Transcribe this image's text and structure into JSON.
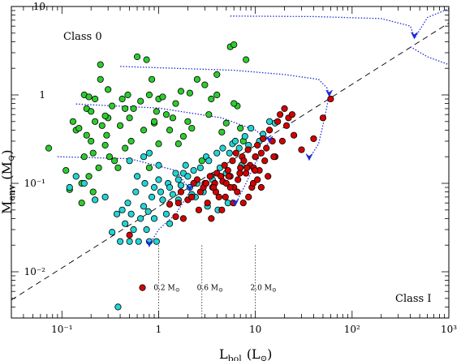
{
  "chart_data": {
    "type": "scatter",
    "xaxis": {
      "scale": "log",
      "range": [
        0.03,
        1000
      ],
      "label": "L",
      "label_sub": "bol",
      "label_unit": "(L",
      "label_unit_tail": ")",
      "tick_labels": [
        "10⁻¹",
        "1",
        "10",
        "10²",
        "10³"
      ],
      "tick_values": [
        0.1,
        1,
        10,
        100,
        1000
      ]
    },
    "yaxis": {
      "scale": "log",
      "range": [
        0.003,
        10
      ],
      "label": "M",
      "label_sub": "env",
      "label_unit": "(M",
      "label_unit_tail": ")",
      "tick_labels": [
        "10⁻²",
        "10⁻¹",
        "1",
        "10"
      ],
      "tick_values": [
        0.01,
        0.1,
        1,
        10
      ]
    },
    "annotations": {
      "class0": "Class 0",
      "class1": "Class I"
    },
    "mass_tracks": [
      {
        "label": "0.2 M",
        "x": 1.0
      },
      {
        "label": "0.6 M",
        "x": 2.8
      },
      {
        "label": "2.0 M",
        "x": 10.0
      }
    ],
    "boundary_line": {
      "x": [
        0.03,
        1000
      ],
      "y": [
        0.0048,
        6.5
      ]
    },
    "tracks": [
      {
        "x": [
          0.09,
          0.5,
          1.5,
          2.1
        ],
        "y": [
          0.2,
          0.19,
          0.14,
          0.085
        ]
      },
      {
        "x": [
          0.14,
          1.0,
          4.5,
          10.0,
          14.0
        ],
        "y": [
          0.79,
          0.71,
          0.55,
          0.4,
          0.3
        ]
      },
      {
        "x": [
          0.4,
          1.5,
          6.0,
          20.0,
          45.0,
          55.0,
          58.0
        ],
        "y": [
          2.1,
          2.0,
          1.9,
          1.7,
          1.5,
          1.2,
          1.0
        ]
      },
      {
        "x": [
          5.5,
          40.0,
          200.0,
          400.0,
          440.0
        ],
        "y": [
          7.8,
          7.7,
          7.3,
          6.0,
          4.5
        ]
      },
      {
        "x": [
          450.0,
          600.0,
          900.0,
          1000.0
        ],
        "y": [
          4.5,
          7.5,
          9.0,
          9.5
        ]
      },
      {
        "x": [
          400.0,
          600.0,
          900.0,
          1000.0
        ],
        "y": [
          3.5,
          2.7,
          2.3,
          2.2
        ]
      },
      {
        "x": [
          2.1,
          1.5,
          1.0,
          0.8
        ],
        "y": [
          0.08,
          0.045,
          0.03,
          0.02
        ]
      },
      {
        "x": [
          14.0,
          10.0,
          8.0,
          6.2
        ],
        "y": [
          0.3,
          0.17,
          0.1,
          0.058
        ]
      },
      {
        "x": [
          58.0,
          52.0,
          45.0,
          36.0
        ],
        "y": [
          1.0,
          0.55,
          0.28,
          0.19
        ]
      }
    ],
    "arrows": [
      {
        "x": 2.1,
        "y": 0.085
      },
      {
        "x": 0.8,
        "y": 0.02
      },
      {
        "x": 14.0,
        "y": 0.3
      },
      {
        "x": 6.2,
        "y": 0.058
      },
      {
        "x": 58.0,
        "y": 1.0
      },
      {
        "x": 36.0,
        "y": 0.19
      },
      {
        "x": 440.0,
        "y": 4.5
      }
    ],
    "series": [
      {
        "color": "#2dcc2d",
        "x": [
          0.073,
          0.11,
          0.12,
          0.13,
          0.14,
          0.15,
          0.16,
          0.16,
          0.17,
          0.17,
          0.18,
          0.18,
          0.19,
          0.19,
          0.2,
          0.2,
          0.21,
          0.21,
          0.22,
          0.22,
          0.24,
          0.25,
          0.26,
          0.28,
          0.29,
          0.3,
          0.31,
          0.33,
          0.35,
          0.38,
          0.4,
          0.42,
          0.45,
          0.48,
          0.5,
          0.52,
          0.55,
          0.6,
          0.65,
          0.7,
          0.75,
          0.8,
          0.85,
          0.9,
          0.95,
          1.0,
          1.1,
          1.2,
          1.3,
          1.4,
          1.5,
          1.6,
          1.7,
          1.8,
          2.0,
          2.2,
          2.5,
          2.8,
          3.0,
          3.3,
          3.5,
          4.0,
          4.5,
          5.0,
          5.5,
          6.0,
          6.5,
          7.0,
          7.5,
          8.0,
          0.8,
          1.0,
          0.25,
          0.3,
          0.45,
          0.9,
          2.1,
          4.0,
          6.0,
          0.28
        ],
        "y": [
          0.25,
          0.14,
          0.085,
          0.5,
          0.4,
          0.42,
          0.06,
          0.1,
          1.0,
          0.2,
          0.7,
          0.35,
          0.12,
          0.95,
          0.3,
          0.65,
          0.08,
          0.22,
          0.5,
          0.9,
          0.15,
          1.5,
          0.45,
          0.27,
          0.35,
          0.55,
          0.2,
          0.75,
          0.18,
          0.15,
          0.45,
          0.9,
          0.25,
          1.0,
          0.55,
          0.3,
          0.7,
          2.7,
          0.85,
          0.4,
          2.5,
          1.0,
          1.5,
          0.48,
          0.65,
          0.9,
          0.95,
          0.6,
          0.4,
          0.55,
          0.8,
          0.28,
          1.1,
          0.34,
          0.5,
          0.42,
          1.5,
          0.18,
          1.3,
          0.6,
          0.9,
          1.0,
          0.38,
          0.48,
          3.5,
          3.7,
          0.75,
          0.42,
          0.3,
          2.5,
          0.15,
          0.28,
          2.2,
          1.15,
          0.7,
          0.5,
          1.05,
          1.7,
          0.8,
          0.58
        ]
      },
      {
        "color": "#22d4d4",
        "x": [
          0.12,
          0.14,
          0.17,
          0.22,
          0.28,
          0.33,
          0.37,
          0.4,
          0.42,
          0.45,
          0.48,
          0.5,
          0.52,
          0.55,
          0.58,
          0.62,
          0.65,
          0.7,
          0.72,
          0.75,
          0.78,
          0.8,
          0.85,
          0.9,
          0.95,
          1.0,
          1.05,
          1.1,
          1.2,
          1.25,
          1.3,
          1.4,
          1.5,
          1.6,
          1.7,
          1.8,
          1.9,
          2.0,
          2.1,
          2.3,
          2.5,
          2.7,
          2.9,
          3.1,
          3.3,
          3.5,
          3.8,
          4.0,
          4.3,
          4.6,
          5.0,
          5.4,
          5.8,
          6.2,
          6.8,
          7.2,
          7.8,
          8.5,
          9.0,
          10.0,
          11.0,
          12.0,
          14.0,
          16.0,
          0.5,
          0.6,
          0.7,
          0.8,
          1.6,
          2.4,
          3.2,
          4.1,
          5.2,
          0.9,
          1.3,
          2.2,
          3.6,
          1.0,
          0.38
        ],
        "y": [
          0.09,
          0.12,
          0.1,
          0.065,
          0.07,
          0.028,
          0.045,
          0.022,
          0.05,
          0.035,
          0.06,
          0.022,
          0.045,
          0.03,
          0.08,
          0.022,
          0.04,
          0.055,
          0.1,
          0.03,
          0.048,
          0.022,
          0.07,
          0.09,
          0.022,
          0.11,
          0.08,
          0.065,
          0.045,
          0.1,
          0.09,
          0.075,
          0.13,
          0.11,
          0.095,
          0.13,
          0.16,
          0.12,
          0.09,
          0.14,
          0.1,
          0.15,
          0.08,
          0.2,
          0.18,
          0.12,
          0.1,
          0.22,
          0.15,
          0.25,
          0.13,
          0.22,
          0.28,
          0.3,
          0.25,
          0.16,
          0.34,
          0.27,
          0.42,
          0.2,
          0.3,
          0.36,
          0.5,
          0.48,
          0.18,
          0.12,
          0.2,
          0.22,
          0.065,
          0.07,
          0.055,
          0.05,
          0.06,
          0.04,
          0.035,
          0.075,
          0.11,
          0.16,
          0.004
        ]
      },
      {
        "color": "#d40000",
        "x": [
          0.5,
          1.3,
          1.5,
          1.6,
          1.8,
          2.0,
          2.2,
          2.5,
          2.7,
          3.0,
          3.2,
          3.4,
          3.6,
          3.8,
          4.0,
          4.2,
          4.4,
          4.6,
          4.8,
          5.0,
          5.2,
          5.5,
          5.8,
          6.0,
          6.3,
          6.6,
          7.0,
          7.3,
          7.6,
          8.0,
          8.4,
          8.8,
          9.2,
          9.6,
          10.0,
          10.5,
          11.0,
          11.5,
          12.0,
          12.5,
          13.0,
          14.0,
          15.0,
          16.0,
          17.0,
          18.0,
          19.0,
          20.0,
          21.0,
          22.0,
          24.0,
          25.0,
          2.6,
          3.5,
          4.5,
          5.5,
          6.5,
          7.5,
          8.5,
          9.5,
          10.5,
          11.5,
          13.5,
          15.5,
          1.7,
          2.3,
          2.9,
          3.9,
          4.9,
          5.9,
          6.9,
          50.0,
          60.0,
          30.0,
          40.0,
          3.1,
          3.7,
          5.3,
          8.2,
          9.9
        ],
        "y": [
          0.026,
          0.058,
          0.042,
          0.06,
          0.04,
          0.065,
          0.07,
          0.11,
          0.08,
          0.1,
          0.06,
          0.12,
          0.09,
          0.1,
          0.13,
          0.07,
          0.12,
          0.105,
          0.16,
          0.1,
          0.14,
          0.12,
          0.18,
          0.09,
          0.22,
          0.11,
          0.15,
          0.2,
          0.18,
          0.13,
          0.24,
          0.16,
          0.09,
          0.15,
          0.2,
          0.27,
          0.14,
          0.22,
          0.32,
          0.18,
          0.25,
          0.4,
          0.3,
          0.2,
          0.5,
          0.6,
          0.3,
          0.7,
          0.45,
          0.55,
          0.6,
          0.35,
          0.05,
          0.04,
          0.05,
          0.09,
          0.08,
          0.06,
          0.07,
          0.1,
          0.11,
          0.09,
          0.12,
          0.2,
          0.08,
          0.1,
          0.09,
          0.08,
          0.07,
          0.06,
          0.13,
          0.55,
          0.9,
          0.24,
          0.32,
          0.1,
          0.09,
          0.12,
          0.15,
          0.14
        ]
      }
    ]
  }
}
